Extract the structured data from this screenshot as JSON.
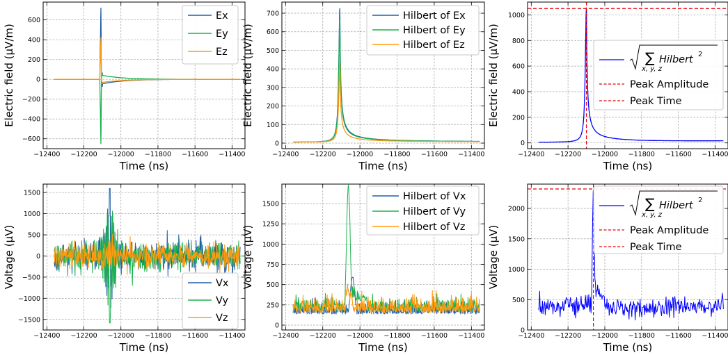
{
  "chart_data": [
    {
      "id": "p11",
      "type": "line",
      "mode": "efield",
      "xlabel": "Time (ns)",
      "ylabel": "Electric field (μV/m)",
      "xlim": [
        -12420,
        -11330
      ],
      "ylim": [
        -700,
        780
      ],
      "xticks": [
        -12400,
        -12200,
        -12000,
        -11800,
        -11600,
        -11400
      ],
      "yticks": [
        -600,
        -400,
        -200,
        0,
        200,
        400,
        600
      ],
      "grid": true,
      "legend_position": "top-right",
      "series": [
        {
          "name": "Ex",
          "color": "#1f5fa8",
          "peak": 720,
          "t0": -12108
        },
        {
          "name": "Ey",
          "color": "#19b24b",
          "peak": -650,
          "t0": -12108
        },
        {
          "name": "Ez",
          "color": "#ff9a0e",
          "peak": 420,
          "t0": -12108
        }
      ]
    },
    {
      "id": "p12",
      "type": "line",
      "mode": "hilbert-e",
      "xlabel": "Time (ns)",
      "ylabel": "Electric field (μV/m)",
      "xlim": [
        -12420,
        -11330
      ],
      "ylim": [
        -30,
        760
      ],
      "xticks": [
        -12400,
        -12200,
        -12000,
        -11800,
        -11600,
        -11400
      ],
      "yticks": [
        0,
        100,
        200,
        300,
        400,
        500,
        600,
        700
      ],
      "grid": true,
      "legend_position": "top-right",
      "series": [
        {
          "name": "Hilbert of Ex",
          "color": "#1f5fa8",
          "peak": 720,
          "t0": -12108
        },
        {
          "name": "Hilbert of Ey",
          "color": "#19b24b",
          "peak": 660,
          "t0": -12108
        },
        {
          "name": "Hilbert of Ez",
          "color": "#ff9a0e",
          "peak": 425,
          "t0": -12108
        }
      ]
    },
    {
      "id": "p13",
      "type": "line",
      "mode": "magnitude-e",
      "xlabel": "Time (ns)",
      "ylabel": "Electric field (μV/m)",
      "xlim": [
        -12420,
        -11330
      ],
      "ylim": [
        -45,
        1100
      ],
      "xticks": [
        -12400,
        -12200,
        -12000,
        -11800,
        -11600,
        -11400
      ],
      "yticks": [
        0,
        200,
        400,
        600,
        800,
        1000
      ],
      "grid": true,
      "legend_position": "center-right",
      "peak_amplitude": 1050,
      "peak_time": -12100,
      "series": [
        {
          "name": "sqrt(sum_{x,y,z} Hilbert^2)",
          "color": "#0000ff",
          "peak": 1050,
          "t0": -12100
        }
      ],
      "legend_labels": {
        "sum_sub": "x, y, z",
        "term": "Hilbert",
        "exp": "2",
        "amp": "Peak Amplitude",
        "time": "Peak Time"
      },
      "reference_color": "#e8000b"
    },
    {
      "id": "p21",
      "type": "line",
      "mode": "voltage",
      "xlabel": "Time (ns)",
      "ylabel": "Voltage (μV)",
      "xlim": [
        -12420,
        -11330
      ],
      "ylim": [
        -1750,
        1700
      ],
      "xticks": [
        -12400,
        -12200,
        -12000,
        -11800,
        -11600,
        -11400
      ],
      "yticks": [
        -1500,
        -1000,
        -500,
        0,
        500,
        1000,
        1500
      ],
      "grid": true,
      "legend_position": "bottom-right",
      "series": [
        {
          "name": "Vx",
          "color": "#1f5fa8",
          "peak": 1600,
          "t0": -12060
        },
        {
          "name": "Vy",
          "color": "#19b24b",
          "peak": 1580,
          "t0": -12060
        },
        {
          "name": "Vz",
          "color": "#ff9a0e",
          "peak": 350,
          "t0": -12060
        }
      ]
    },
    {
      "id": "p22",
      "type": "line",
      "mode": "hilbert-v",
      "xlabel": "Time (ns)",
      "ylabel": "Voltage (μV)",
      "xlim": [
        -12420,
        -11330
      ],
      "ylim": [
        -60,
        1740
      ],
      "xticks": [
        -12400,
        -12200,
        -12000,
        -11800,
        -11600,
        -11400
      ],
      "yticks": [
        0,
        250,
        500,
        750,
        1000,
        1250,
        1500
      ],
      "grid": true,
      "legend_position": "top-right",
      "series": [
        {
          "name": "Hilbert of Vx",
          "color": "#1f5fa8",
          "peak": 600,
          "t0": -12040
        },
        {
          "name": "Hilbert of Vy",
          "color": "#19b24b",
          "peak": 1650,
          "t0": -12062
        },
        {
          "name": "Hilbert of Vz",
          "color": "#ff9a0e",
          "peak": 400,
          "t0": -12060
        }
      ]
    },
    {
      "id": "p23",
      "type": "line",
      "mode": "magnitude-v",
      "xlabel": "Time (ns)",
      "ylabel": "Voltage (μV)",
      "xlim": [
        -12420,
        -11330
      ],
      "ylim": [
        0,
        2400
      ],
      "xticks": [
        -12400,
        -12200,
        -12000,
        -11800,
        -11600,
        -11400
      ],
      "yticks": [
        0,
        500,
        1000,
        1500,
        2000
      ],
      "grid": true,
      "legend_position": "top-right",
      "peak_amplitude": 2320,
      "peak_time": -12062,
      "series": [
        {
          "name": "sqrt(sum_{x,y,z} Hilbert^2)",
          "color": "#0000ff",
          "peak": 2320,
          "t0": -12062
        }
      ],
      "legend_labels": {
        "sum_sub": "x, y, z",
        "term": "Hilbert",
        "exp": "2",
        "amp": "Peak Amplitude",
        "time": "Peak Time"
      },
      "reference_color": "#e8000b"
    }
  ]
}
